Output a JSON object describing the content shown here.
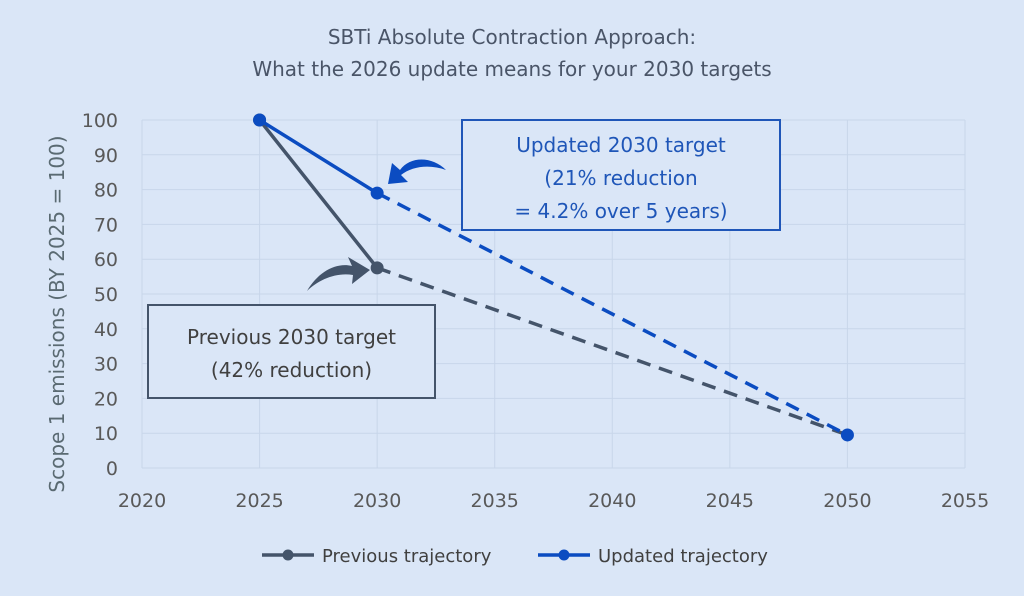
{
  "chart_data": {
    "type": "line",
    "title": [
      "SBTi Absolute Contraction Approach:",
      "What the 2026 update means for your 2030 targets"
    ],
    "ylabel": "Scope 1 emissions (BY 2025 = 100)",
    "xlabel": "",
    "xlim": [
      2020,
      2055
    ],
    "ylim": [
      0,
      100
    ],
    "x_ticks": [
      2020,
      2025,
      2030,
      2035,
      2040,
      2045,
      2050,
      2055
    ],
    "y_ticks": [
      0,
      10,
      20,
      30,
      40,
      50,
      60,
      70,
      80,
      90,
      100
    ],
    "grid": true,
    "legend_position": "bottom",
    "series": [
      {
        "name": "Previous trajectory",
        "color": "#44546a",
        "solid": [
          [
            2025,
            100
          ],
          [
            2030,
            57.5
          ]
        ],
        "dashed": [
          [
            2030,
            57.5
          ],
          [
            2050,
            9.5
          ]
        ],
        "markers": [
          [
            2025,
            100
          ],
          [
            2030,
            57.5
          ]
        ]
      },
      {
        "name": "Updated trajectory",
        "color": "#0b4cc1",
        "solid": [
          [
            2025,
            100
          ],
          [
            2030,
            79
          ]
        ],
        "dashed": [
          [
            2030,
            79
          ],
          [
            2050,
            9.5
          ]
        ],
        "markers": [
          [
            2025,
            100
          ],
          [
            2030,
            79
          ],
          [
            2050,
            9.5
          ]
        ]
      }
    ],
    "annotations": [
      {
        "id": "updated",
        "lines": [
          "Updated 2030 target",
          "(21% reduction",
          "= 4.2% over 5 years)"
        ],
        "text_color": "#1f56b8",
        "border_color": "#1f56b8",
        "arrow_color": "#0b4cc1"
      },
      {
        "id": "previous",
        "lines": [
          "Previous 2030 target",
          "(42% reduction)"
        ],
        "text_color": "#404040",
        "border_color": "#44546a",
        "arrow_color": "#44546a"
      }
    ]
  }
}
